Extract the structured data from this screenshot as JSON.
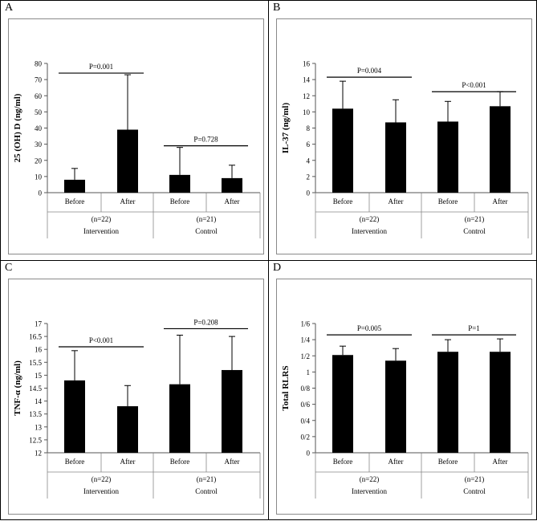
{
  "panels": [
    {
      "label": "A",
      "chart_data": {
        "type": "bar",
        "ylabel": "25 (OH) D (ng/ml)",
        "ylim": [
          0,
          80
        ],
        "yticks": [
          "0",
          "10",
          "20",
          "30",
          "40",
          "50",
          "60",
          "70",
          "80"
        ],
        "ytick_values": [
          0,
          10,
          20,
          30,
          40,
          50,
          60,
          70,
          80
        ],
        "categories": [
          "Before",
          "After",
          "Before",
          "After"
        ],
        "values": [
          8,
          39,
          11,
          9
        ],
        "error_upper": [
          15,
          73,
          28,
          17
        ],
        "groups": [
          {
            "n": "(n=22)",
            "name": "Intervention",
            "p": "P=0.001",
            "p_level": 74
          },
          {
            "n": "(n=21)",
            "name": "Control",
            "p": "P=0.728",
            "p_level": 29
          }
        ]
      }
    },
    {
      "label": "B",
      "chart_data": {
        "type": "bar",
        "ylabel": "IL-37 (ng/ml)",
        "ylim": [
          0,
          16
        ],
        "yticks": [
          "0",
          "2",
          "4",
          "6",
          "8",
          "10",
          "12",
          "14",
          "16"
        ],
        "ytick_values": [
          0,
          2,
          4,
          6,
          8,
          10,
          12,
          14,
          16
        ],
        "categories": [
          "Before",
          "After",
          "Before",
          "After"
        ],
        "values": [
          10.4,
          8.7,
          8.8,
          10.7
        ],
        "error_upper": [
          13.8,
          11.5,
          11.3,
          12.5
        ],
        "groups": [
          {
            "n": "(n=22)",
            "name": "Intervention",
            "p": "P=0.004",
            "p_level": 14.3
          },
          {
            "n": "(n=21)",
            "name": "Control",
            "p": "P<0.001",
            "p_level": 12.5
          }
        ]
      }
    },
    {
      "label": "C",
      "chart_data": {
        "type": "bar",
        "ylabel": "TNF-α (ng/ml)",
        "ylim": [
          12,
          17
        ],
        "yticks": [
          "12",
          "12.5",
          "13",
          "13.5",
          "14",
          "14.5",
          "15",
          "15.5",
          "16",
          "16.5",
          "17"
        ],
        "ytick_values": [
          12,
          12.5,
          13,
          13.5,
          14,
          14.5,
          15,
          15.5,
          16,
          16.5,
          17
        ],
        "categories": [
          "Before",
          "After",
          "Before",
          "After"
        ],
        "values": [
          14.8,
          13.8,
          14.65,
          15.2
        ],
        "error_upper": [
          15.95,
          14.6,
          16.55,
          16.5
        ],
        "groups": [
          {
            "n": "(n=22)",
            "name": "Intervention",
            "p": "P<0.001",
            "p_level": 16.1
          },
          {
            "n": "(n=21)",
            "name": "Control",
            "p": "P=0.208",
            "p_level": 16.8
          }
        ]
      }
    },
    {
      "label": "D",
      "chart_data": {
        "type": "bar",
        "ylabel": "Total RLRS",
        "ylim": [
          0,
          1.6
        ],
        "yticks": [
          "0",
          "0/2",
          "0/4",
          "0/6",
          "0/8",
          "1",
          "1/2",
          "1/4",
          "1/6"
        ],
        "ytick_values": [
          0,
          0.2,
          0.4,
          0.6,
          0.8,
          1.0,
          1.2,
          1.4,
          1.6
        ],
        "categories": [
          "Before",
          "After",
          "Before",
          "After"
        ],
        "values": [
          1.21,
          1.14,
          1.25,
          1.25
        ],
        "error_upper": [
          1.32,
          1.29,
          1.4,
          1.41
        ],
        "groups": [
          {
            "n": "(n=22)",
            "name": "Intervention",
            "p": "P=0.005",
            "p_level": 1.46
          },
          {
            "n": "(n=21)",
            "name": "Control",
            "p": "P=1",
            "p_level": 1.46
          }
        ]
      }
    }
  ]
}
